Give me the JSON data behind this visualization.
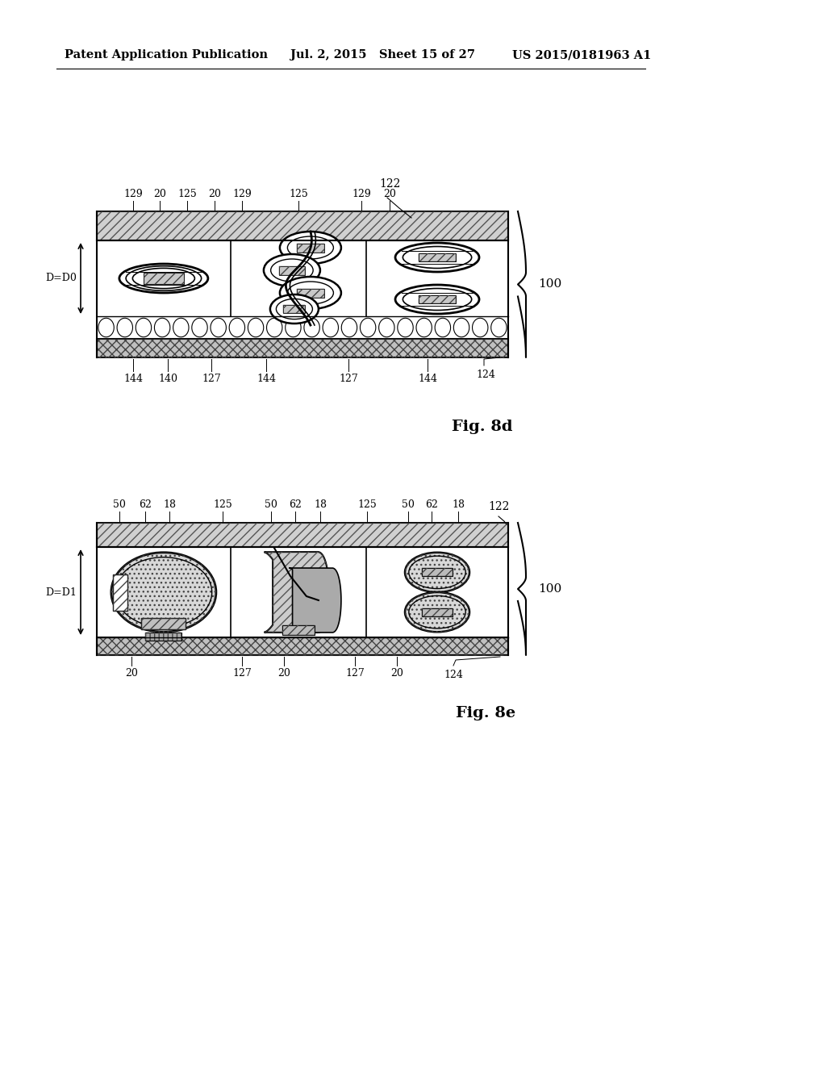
{
  "header_left": "Patent Application Publication",
  "header_mid": "Jul. 2, 2015   Sheet 15 of 27",
  "header_right": "US 2015/0181963 A1",
  "fig8d_label": "Fig. 8d",
  "fig8e_label": "Fig. 8e",
  "bg_color": "#ffffff"
}
